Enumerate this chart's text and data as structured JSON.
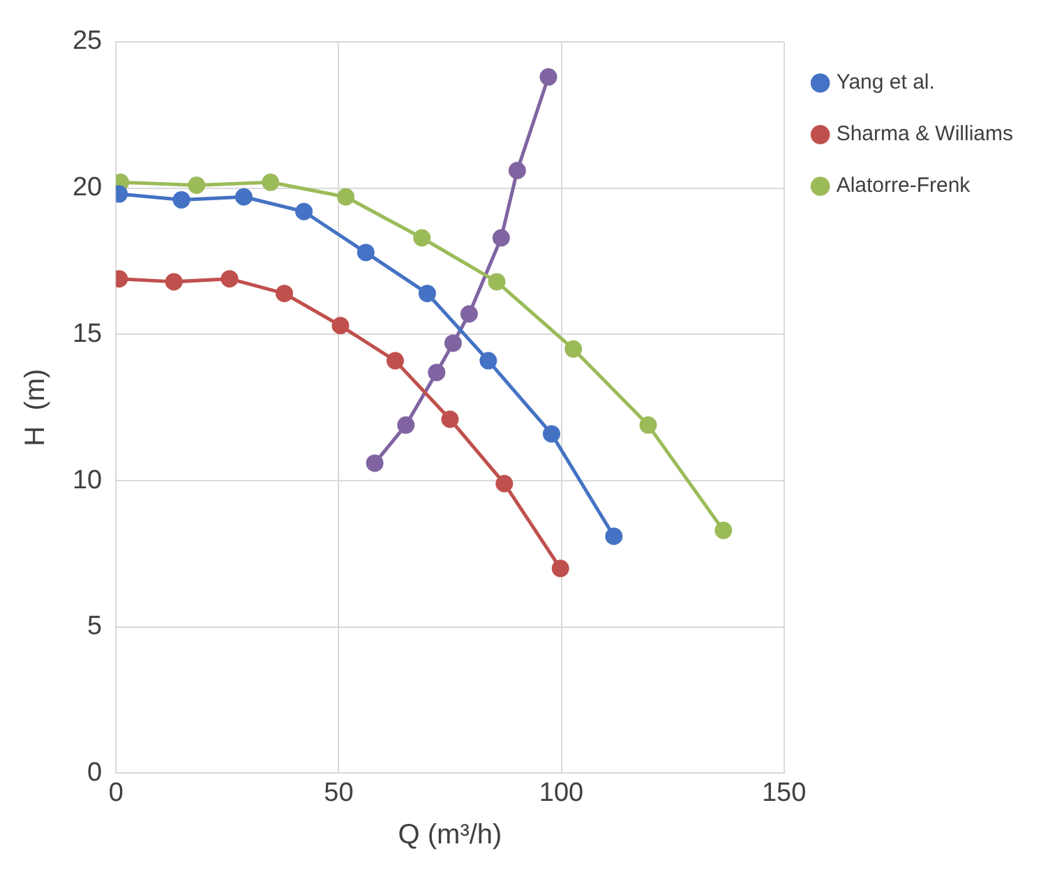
{
  "chart_data": {
    "type": "line",
    "xlabel": "Q (m³/h)",
    "ylabel": "H  (m)",
    "xlim": [
      0,
      150
    ],
    "xticks": [
      0,
      50,
      100,
      150
    ],
    "ylim": [
      0,
      25
    ],
    "yticks": [
      0,
      5,
      10,
      15,
      20,
      25
    ],
    "grid": true,
    "legend": "top right",
    "marker": "circle",
    "line_style": "solid",
    "series": [
      {
        "name": "Yang et al.",
        "color": "#4472c4",
        "x": [
          0.7,
          14.7,
          28.7,
          42.2,
          56.1,
          69.9,
          83.6,
          97.8,
          111.8
        ],
        "values": [
          19.8,
          19.6,
          19.7,
          19.2,
          17.8,
          16.4,
          14.1,
          11.6,
          8.1
        ]
      },
      {
        "name": "Sharma & Williams",
        "color": "#c0504d",
        "x": [
          0.7,
          13,
          25.5,
          37.8,
          50.4,
          62.7,
          75,
          87.2,
          99.8
        ],
        "values": [
          16.9,
          16.8,
          16.9,
          16.4,
          15.3,
          14.1,
          12.1,
          9.9,
          7
        ]
      },
      {
        "name": "Alatorre-Frenk",
        "color": "#9bbb59",
        "x": [
          1,
          18.1,
          34.7,
          51.6,
          68.7,
          85.5,
          102.7,
          119.5,
          136.4
        ],
        "values": [
          20.2,
          20.1,
          20.2,
          19.7,
          18.3,
          16.8,
          14.5,
          11.9,
          8.3
        ]
      },
      {
        "color": "#8064a2",
        "x": [
          58.1,
          65.1,
          72,
          75.7,
          79.3,
          86.5,
          90.1,
          97.1
        ],
        "values": [
          10.6,
          11.9,
          13.7,
          14.7,
          15.7,
          18.3,
          20.6,
          23.8
        ]
      }
    ]
  }
}
